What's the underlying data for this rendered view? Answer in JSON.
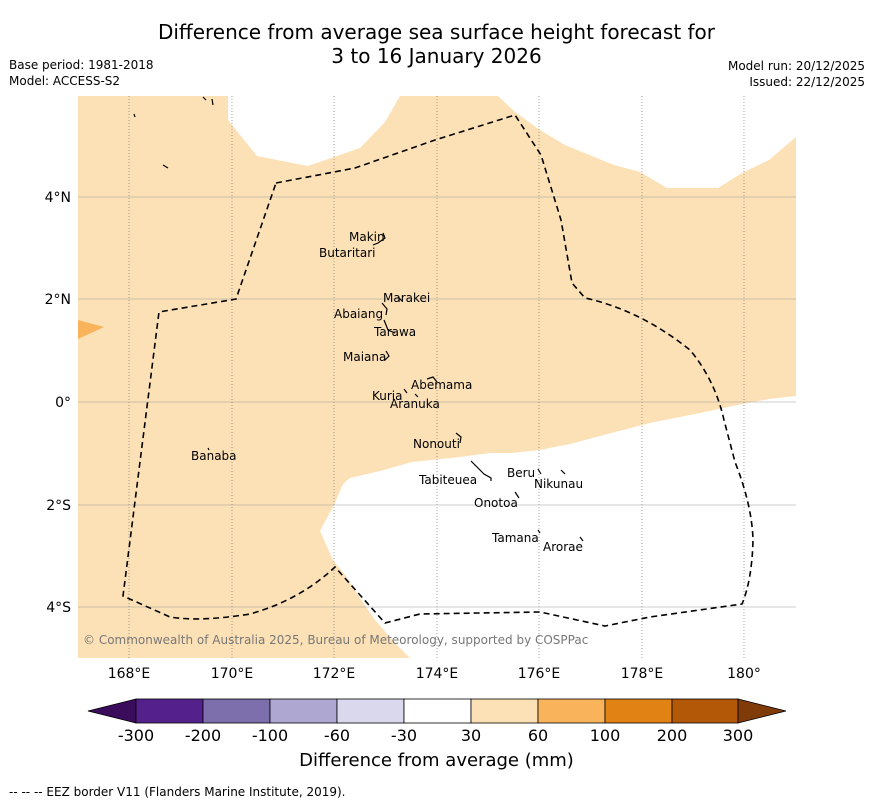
{
  "header": {
    "title_line1": "Difference from average sea surface height forecast for",
    "title_line2": "3 to 16 January 2026",
    "base_period": "Base period: 1981-2018",
    "model": "Model: ACCESS-S2",
    "model_run": "Model run: 20/12/2025",
    "issued": "Issued: 22/12/2025"
  },
  "map": {
    "lon_labels": [
      "168°E",
      "170°E",
      "172°E",
      "174°E",
      "176°E",
      "178°E",
      "180°"
    ],
    "lat_labels": [
      "4°N",
      "2°N",
      "0°",
      "2°S",
      "4°S"
    ],
    "copyright": "© Commonwealth of Australia 2025, Bureau of Meteorology, supported by COSPPac",
    "places": [
      {
        "name": "Makin"
      },
      {
        "name": "Butaritari"
      },
      {
        "name": "Marakei"
      },
      {
        "name": "Abaiang"
      },
      {
        "name": "Tarawa"
      },
      {
        "name": "Maiana"
      },
      {
        "name": "Abemama"
      },
      {
        "name": "Kuria"
      },
      {
        "name": "Aranuka"
      },
      {
        "name": "Nonouti"
      },
      {
        "name": "Banaba"
      },
      {
        "name": "Beru"
      },
      {
        "name": "Tabiteuea"
      },
      {
        "name": "Nikunau"
      },
      {
        "name": "Onotoa"
      },
      {
        "name": "Tamana"
      },
      {
        "name": "Arorae"
      }
    ]
  },
  "colorbar": {
    "ticks": [
      "-300",
      "-200",
      "-100",
      "-60",
      "-30",
      "30",
      "60",
      "100",
      "200",
      "300"
    ],
    "colors": [
      "#3c0c5c",
      "#54218c",
      "#7c6fab",
      "#aea7d1",
      "#d9d8ec",
      "#ffffff",
      "#fde1b6",
      "#f8b35b",
      "#e08214",
      "#b35806",
      "#7f3b08"
    ],
    "title": "Difference from average (mm)"
  },
  "footnote": "--  --  -- EEZ border V11 (Flanders Marine Institute, 2019)."
}
